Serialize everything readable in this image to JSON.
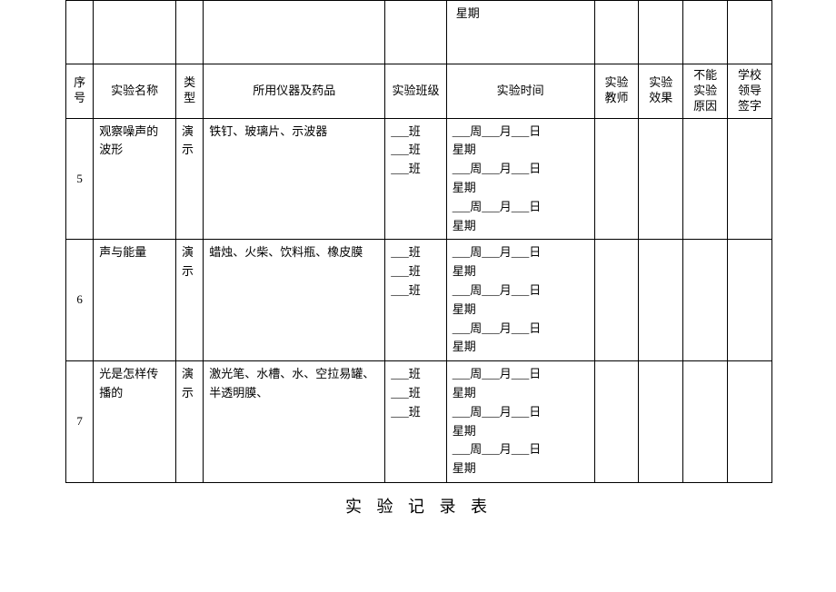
{
  "stubrow": {
    "time_text": "星期"
  },
  "headers": {
    "seq": "序号",
    "name": "实验名称",
    "type": "类型",
    "equip": "所用仪器及药品",
    "class": "实验班级",
    "time": "实验时间",
    "teacher": "实验教师",
    "effect": "实验效果",
    "reason": "不能实验原因",
    "sign": "学校领导签字"
  },
  "rows": [
    {
      "seq": "5",
      "name": "观察噪声的波形",
      "type": "演示",
      "equip": "铁钉、玻璃片、示波器",
      "class": "___班\n___班\n___班",
      "time": "___周___月___日\n星期\n___周___月___日\n星期\n___周___月___日\n星期",
      "teacher": "",
      "effect": "",
      "reason": "",
      "sign": ""
    },
    {
      "seq": "6",
      "name": "声与能量",
      "type": "演示",
      "equip": "蜡烛、火柴、饮料瓶、橡皮膜",
      "class": "___班\n___班\n___班",
      "time": "___周___月___日\n星期\n___周___月___日\n星期\n___周___月___日\n星期",
      "teacher": "",
      "effect": "",
      "reason": "",
      "sign": ""
    },
    {
      "seq": "7",
      "name": "光是怎样传播的",
      "type": "演示",
      "equip": "激光笔、水槽、水、空拉易罐、半透明膜、",
      "class": "___班\n___班\n___班",
      "time": "___周___月___日\n星期\n___周___月___日\n星期\n___周___月___日\n星期",
      "teacher": "",
      "effect": "",
      "reason": "",
      "sign": ""
    }
  ],
  "title": "实 验 记 录 表"
}
